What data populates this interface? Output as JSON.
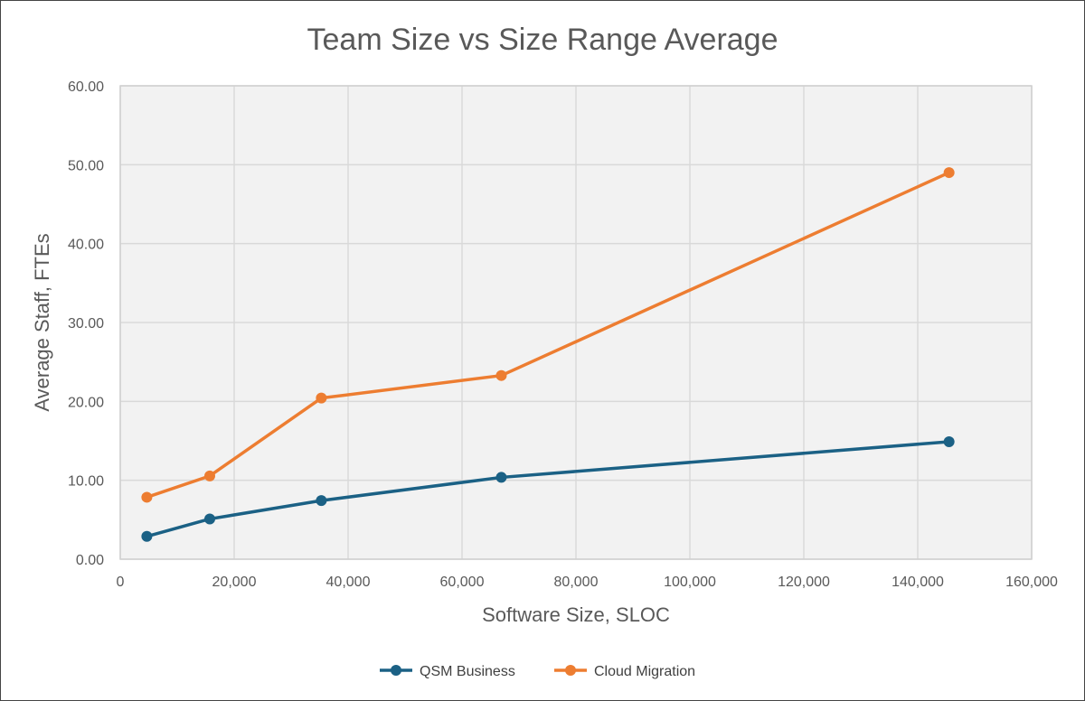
{
  "chart_data": {
    "type": "line",
    "title": "Team Size vs Size Range Average",
    "xlabel": "Software Size, SLOC",
    "ylabel": "Average Staff, FTEs",
    "xlim": [
      0,
      160000
    ],
    "ylim": [
      0,
      60
    ],
    "x_ticks": [
      "0",
      "20,000",
      "40,000",
      "60,000",
      "80,000",
      "100,000",
      "120,000",
      "140,000",
      "160,000"
    ],
    "y_ticks": [
      "0.00",
      "10.00",
      "20.00",
      "30.00",
      "40.00",
      "50.00",
      "60.00"
    ],
    "grid": true,
    "legend": "bottom",
    "series": [
      {
        "name": "QSM Business",
        "color": "#1b6185",
        "x": [
          4667,
          15714,
          35300,
          66900,
          145500
        ],
        "y": [
          2.89,
          5.1,
          7.43,
          10.37,
          14.89
        ]
      },
      {
        "name": "Cloud Migration",
        "color": "#ed7d31",
        "x": [
          4667,
          15714,
          35300,
          66900,
          145500
        ],
        "y": [
          7.85,
          10.55,
          20.42,
          23.28,
          49.0
        ]
      }
    ]
  }
}
